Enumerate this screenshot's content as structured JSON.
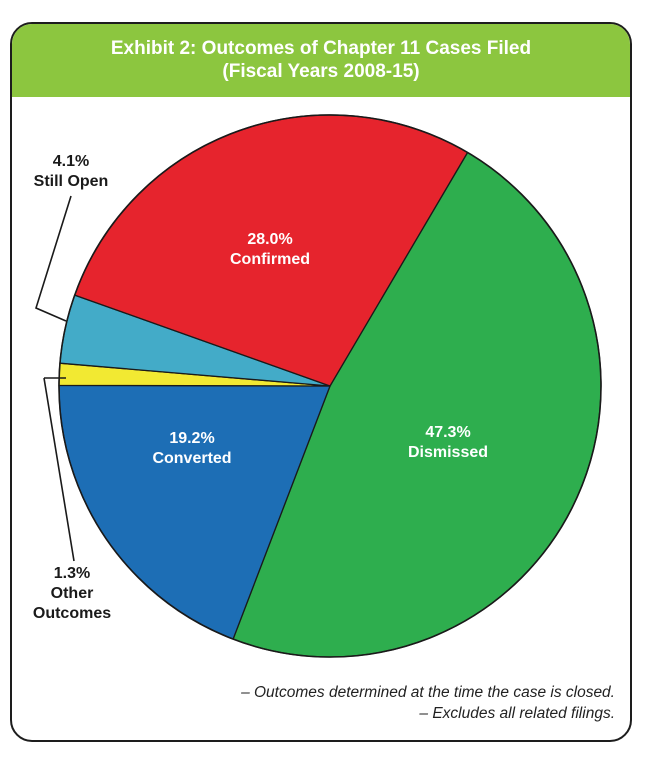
{
  "header": {
    "title_line1": "Exhibit 2: Outcomes of Chapter 11 Cases Filed",
    "title_line2": "(Fiscal Years 2008-15)"
  },
  "chart_data": {
    "type": "pie",
    "title": "Exhibit 2: Outcomes of Chapter 11 Cases Filed (Fiscal Years 2008-15)",
    "slices": [
      {
        "label": "Dismissed",
        "value": 47.3,
        "value_label": "47.3%",
        "color": "#2eae4e"
      },
      {
        "label": "Converted",
        "value": 19.2,
        "value_label": "19.2%",
        "color": "#1d6eb5"
      },
      {
        "label": "Other Outcomes",
        "value": 1.3,
        "value_label": "1.3%",
        "color": "#f2e932"
      },
      {
        "label": "Still Open",
        "value": 4.1,
        "value_label": "4.1%",
        "color": "#43abc8"
      },
      {
        "label": "Confirmed",
        "value": 28.0,
        "value_label": "28.0%",
        "color": "#e6242d"
      }
    ],
    "legend": "none"
  },
  "footnotes": [
    "– Outcomes determined at the time the case is closed.",
    "– Excludes all related filings."
  ],
  "colors": {
    "header_background": "#8cc63f",
    "border": "#1d1d1d"
  }
}
